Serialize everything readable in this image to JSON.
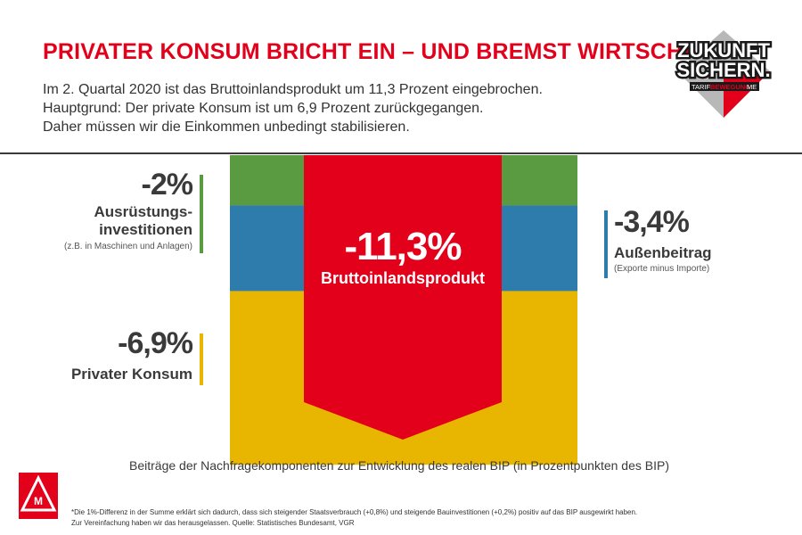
{
  "header": {
    "title": "PRIVATER KONSUM BRICHT EIN – UND BREMST WIRTSCHAFT",
    "lines": [
      "Im 2. Quartal 2020 ist das Bruttoinlandsprodukt um 11,3 Prozent eingebrochen.",
      "Hauptgrund: Der private Konsum ist um 6,9 Prozent zurückgegangen.",
      "Daher müssen wir die Einkommen unbedingt stabilisieren."
    ]
  },
  "badge": {
    "line1": "ZUKUNFT",
    "line2": "SICHERN.",
    "tag_a": "TARIF",
    "tag_b": "BEWEGUNG",
    "tag_c": "ME"
  },
  "chart_data": {
    "type": "bar",
    "title": "",
    "series": [
      {
        "name": "Ausrüstungsinvestitionen",
        "value": -2.0,
        "display": "-2%",
        "note": "(z.B. in Maschinen und Anlagen)",
        "color": "#5a9a40"
      },
      {
        "name": "Außenbeitrag",
        "value": -3.4,
        "display": "-3,4%",
        "note": "(Exporte minus Importe)",
        "color": "#2e7cab"
      },
      {
        "name": "Privater Konsum",
        "value": -6.9,
        "display": "-6,9%",
        "note": "",
        "color": "#e8b500"
      }
    ],
    "total": {
      "name": "Bruttoinlandsprodukt",
      "value": -11.3,
      "display": "-11,3%",
      "color": "#e2001a"
    },
    "label_lines": {
      "ausruestung": [
        "Ausrüstungs-",
        "investitionen"
      ],
      "aussen": "Außenbeitrag",
      "konsum": "Privater Konsum"
    },
    "caption": "Beiträge der Nachfragekomponenten zur Entwicklung des realen BIP (in Prozentpunkten des BIP)",
    "footnotes": [
      "*Die 1%-Differenz in der Summe erklärt sich dadurch, dass sich steigender Staatsverbrauch (+0,8%) und steigende Bauinvestitionen (+0,2%) positiv auf das BIP ausgewirkt haben.",
      "Zur Vereinfachung haben wir das herausgelassen. Quelle: Statistisches Bundesamt, VGR"
    ]
  },
  "colors": {
    "accent_red": "#e2001a",
    "text": "#3a3a3a"
  }
}
